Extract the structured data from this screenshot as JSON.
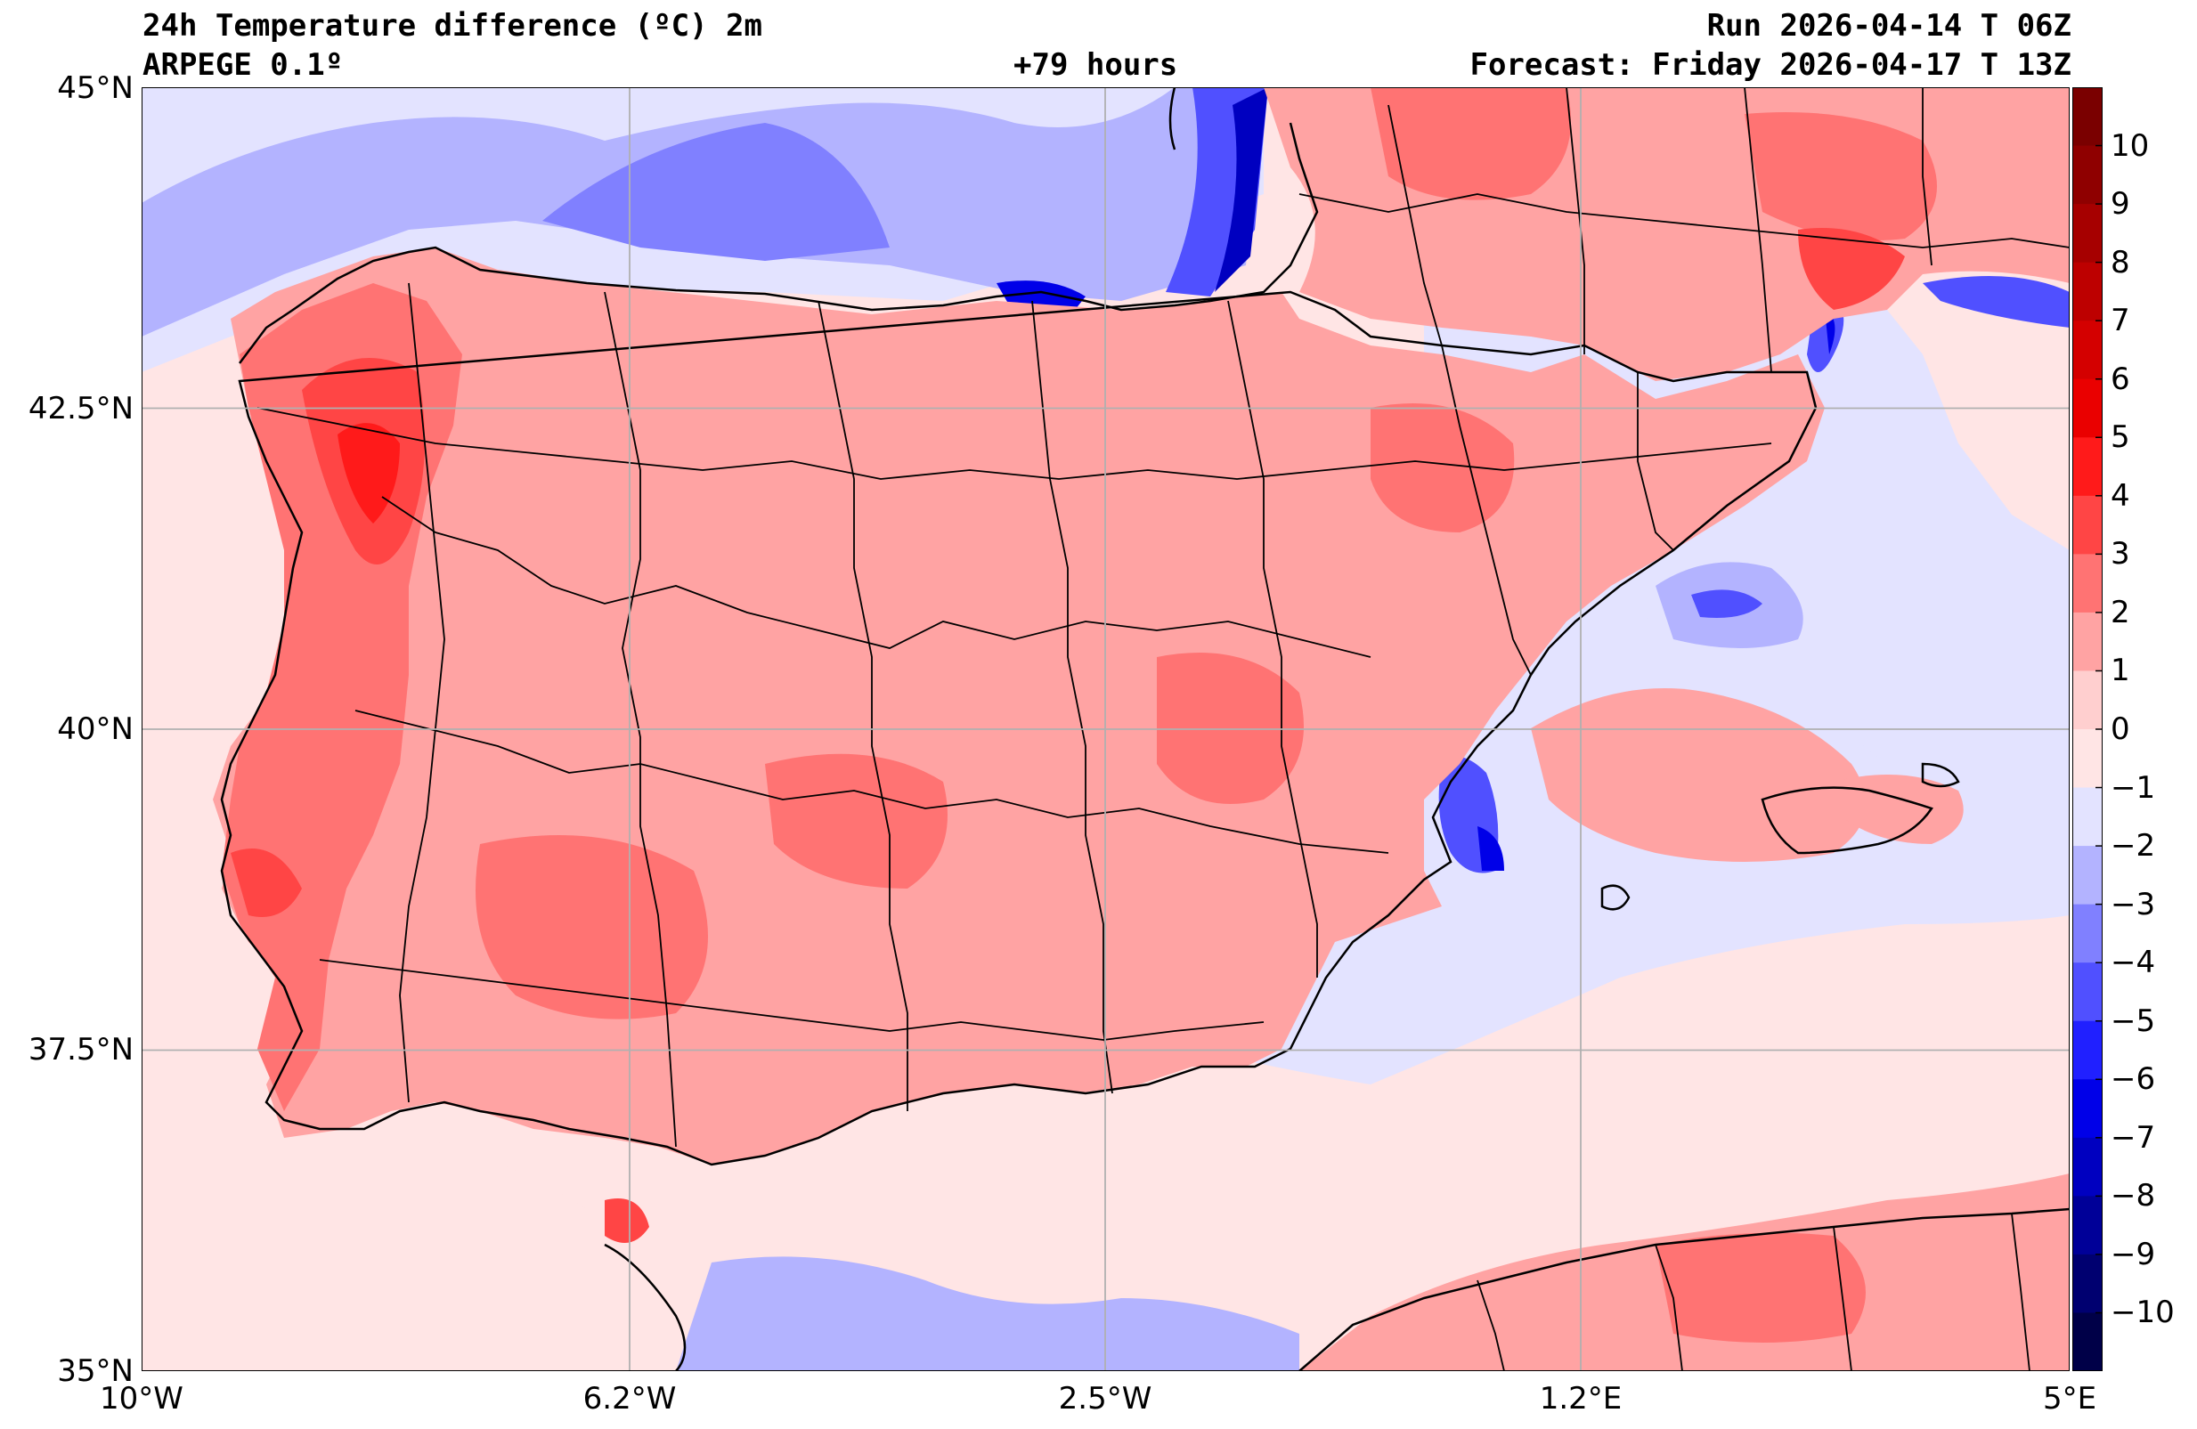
{
  "header": {
    "title_left": "24h Temperature difference (ºC) 2m",
    "model": "ARPEGE 0.1º",
    "lead_time": "+79 hours",
    "run": "Run 2026-04-14 T 06Z",
    "forecast": "Forecast: Friday 2026-04-17 T 13Z"
  },
  "axes": {
    "lat_labels": [
      "45°N",
      "42.5°N",
      "40°N",
      "37.5°N",
      "35°N"
    ],
    "lon_labels": [
      "10°W",
      "6.2°W",
      "2.5°W",
      "1.2°E",
      "5°E"
    ],
    "lat_range": [
      35,
      45
    ],
    "lon_range": [
      -10,
      5
    ]
  },
  "colorbar": {
    "labels": [
      "10",
      "9",
      "8",
      "7",
      "6",
      "5",
      "4",
      "3",
      "2",
      "1",
      "0",
      "−1",
      "−2",
      "−3",
      "−4",
      "−5",
      "−6",
      "−7",
      "−8",
      "−9",
      "−10"
    ],
    "levels": [
      11,
      10,
      9,
      8,
      7,
      6,
      5,
      4,
      3,
      2,
      1,
      0,
      -1,
      -2,
      -3,
      -4,
      -5,
      -6,
      -7,
      -8,
      -9,
      -10,
      -11
    ],
    "colors": [
      "#7a0000",
      "#8f0000",
      "#a60000",
      "#bd0000",
      "#d40000",
      "#ea0000",
      "#ff1a1a",
      "#ff4545",
      "#ff7373",
      "#ffa3a3",
      "#ffcfcf",
      "#ffe5e5",
      "#e3e3ff",
      "#b3b3ff",
      "#8080ff",
      "#5050ff",
      "#2020ff",
      "#0000e8",
      "#0000c0",
      "#000098",
      "#000070",
      "#000048"
    ]
  },
  "colors": {
    "sea_neutral": "#ffe5e5",
    "sea_cool": "#e3e3ff",
    "land_warm": "#ffa3a3",
    "land_hot": "#ff7373",
    "coast_line": "#000000",
    "grid_line": "#b0b0b0"
  }
}
